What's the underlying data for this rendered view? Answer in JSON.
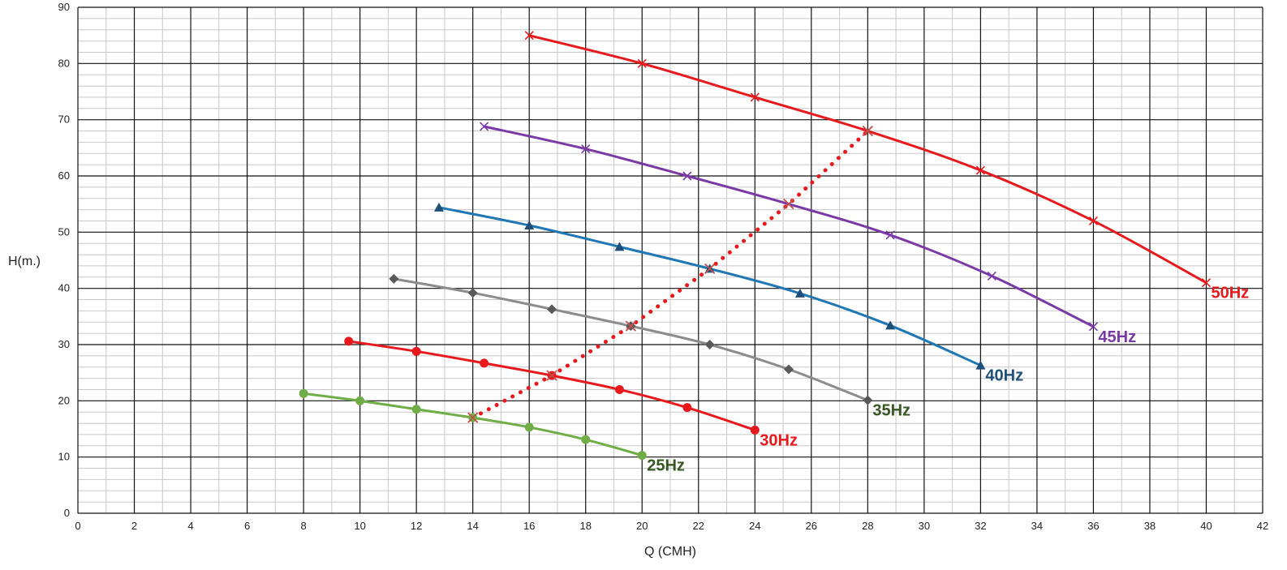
{
  "chart_data": {
    "type": "line",
    "title": "",
    "xlabel": "Q (CMH)",
    "ylabel": "H(m.)",
    "xlim": [
      0,
      42
    ],
    "ylim": [
      0,
      90
    ],
    "x_ticks": [
      0,
      2,
      4,
      6,
      8,
      10,
      12,
      14,
      16,
      18,
      20,
      22,
      24,
      26,
      28,
      30,
      32,
      34,
      36,
      38,
      40,
      42
    ],
    "y_ticks": [
      0,
      10,
      20,
      30,
      40,
      50,
      60,
      70,
      80,
      90
    ],
    "grid": true,
    "legend": "inline labels at curve ends",
    "series": [
      {
        "name": "50Hz",
        "color": "#e8191c",
        "label_color": "#e8191c",
        "marker": "x",
        "dotted": false,
        "points": [
          [
            16,
            85
          ],
          [
            20,
            80
          ],
          [
            24,
            74
          ],
          [
            28,
            68
          ],
          [
            32,
            61
          ],
          [
            36,
            52
          ],
          [
            40,
            41
          ]
        ]
      },
      {
        "name": "45Hz",
        "color": "#7a3aa6",
        "label_color": "#7a3aa6",
        "marker": "x",
        "dotted": false,
        "points": [
          [
            14.4,
            68.8
          ],
          [
            18,
            64.8
          ],
          [
            21.6,
            60
          ],
          [
            25.2,
            55
          ],
          [
            28.8,
            49.5
          ],
          [
            32.4,
            42.2
          ],
          [
            36,
            33.2
          ]
        ]
      },
      {
        "name": "40Hz",
        "color": "#1f77b4",
        "label_color": "#1f4e79",
        "marker": "triangle",
        "dotted": false,
        "points": [
          [
            12.8,
            54.4
          ],
          [
            16,
            51.2
          ],
          [
            19.2,
            47.4
          ],
          [
            22.4,
            43.5
          ],
          [
            25.6,
            39.1
          ],
          [
            28.8,
            33.4
          ],
          [
            32,
            26.3
          ]
        ]
      },
      {
        "name": "35Hz",
        "color": "#8c8c8c",
        "label_color": "#375623",
        "marker": "diamond",
        "dotted": false,
        "points": [
          [
            11.2,
            41.7
          ],
          [
            14,
            39.2
          ],
          [
            16.8,
            36.3
          ],
          [
            19.6,
            33.3
          ],
          [
            22.4,
            30
          ],
          [
            25.2,
            25.6
          ],
          [
            28,
            20.1
          ]
        ]
      },
      {
        "name": "30Hz",
        "color": "#e8191c",
        "label_color": "#e8191c",
        "marker": "circle",
        "dotted": false,
        "points": [
          [
            9.6,
            30.6
          ],
          [
            12,
            28.8
          ],
          [
            14.4,
            26.7
          ],
          [
            16.8,
            24.5
          ],
          [
            19.2,
            22
          ],
          [
            21.6,
            18.8
          ],
          [
            24,
            14.8
          ]
        ]
      },
      {
        "name": "25Hz",
        "color": "#70ad47",
        "label_color": "#375623",
        "marker": "circle",
        "dotted": false,
        "points": [
          [
            8,
            21.3
          ],
          [
            10,
            20
          ],
          [
            12,
            18.5
          ],
          [
            14,
            17
          ],
          [
            16,
            15.3
          ],
          [
            18,
            13.1
          ],
          [
            20,
            10.3
          ]
        ]
      },
      {
        "name": "",
        "color": "#e8191c",
        "label_color": "#e8191c",
        "marker": "none",
        "dotted": true,
        "points": [
          [
            14,
            17
          ],
          [
            16.8,
            24.5
          ],
          [
            19.6,
            33.3
          ],
          [
            22.4,
            43.5
          ],
          [
            25.2,
            55
          ],
          [
            28,
            68
          ]
        ]
      }
    ]
  }
}
